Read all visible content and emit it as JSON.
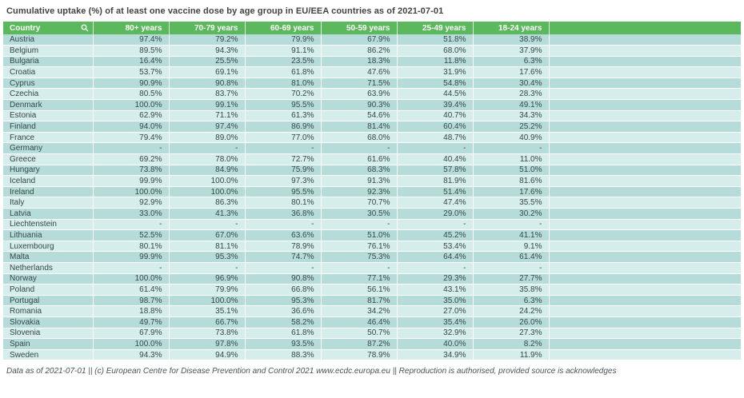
{
  "title": "Cumulative uptake (%) of at least one vaccine dose by age group in EU/EEA countries as of 2021-07-01",
  "footer_note": "Data as of 2021-07-01 || (c) European Centre for Disease Prevention and Control 2021 www.ecdc.europa.eu || Reproduction is authorised, provided source is acknowledges",
  "colors": {
    "header_bg": "#5cb85c",
    "header_text": "#ffffff",
    "row_odd": "#b6dcd9",
    "row_even": "#d5edeb",
    "cell_text": "#37474a",
    "title_color": "#3f4345",
    "footer_color": "#4a5254",
    "page_bg": "#ffffff"
  },
  "icons": {
    "search": "magnifier-icon"
  },
  "chart_data": {
    "type": "table",
    "title": "Cumulative uptake (%) of at least one vaccine dose by age group in EU/EEA countries as of 2021-07-01",
    "columns": [
      "Country",
      "80+ years",
      "70-79 years",
      "60-69 years",
      "50-59 years",
      "25-49 years",
      "18-24 years"
    ],
    "rows": [
      {
        "country": "Austria",
        "values": [
          "97.4%",
          "79.2%",
          "79.9%",
          "67.9%",
          "51.8%",
          "38.9%"
        ]
      },
      {
        "country": "Belgium",
        "values": [
          "89.5%",
          "94.3%",
          "91.1%",
          "86.2%",
          "68.0%",
          "37.9%"
        ]
      },
      {
        "country": "Bulgaria",
        "values": [
          "16.4%",
          "25.5%",
          "23.5%",
          "18.3%",
          "11.8%",
          "6.3%"
        ]
      },
      {
        "country": "Croatia",
        "values": [
          "53.7%",
          "69.1%",
          "61.8%",
          "47.6%",
          "31.9%",
          "17.6%"
        ]
      },
      {
        "country": "Cyprus",
        "values": [
          "90.9%",
          "90.8%",
          "81.0%",
          "71.5%",
          "54.8%",
          "30.4%"
        ]
      },
      {
        "country": "Czechia",
        "values": [
          "80.5%",
          "83.7%",
          "70.2%",
          "63.9%",
          "44.5%",
          "28.3%"
        ]
      },
      {
        "country": "Denmark",
        "values": [
          "100.0%",
          "99.1%",
          "95.5%",
          "90.3%",
          "39.4%",
          "49.1%"
        ]
      },
      {
        "country": "Estonia",
        "values": [
          "62.9%",
          "71.1%",
          "61.3%",
          "54.6%",
          "40.7%",
          "34.3%"
        ]
      },
      {
        "country": "Finland",
        "values": [
          "94.0%",
          "97.4%",
          "86.9%",
          "81.4%",
          "60.4%",
          "25.2%"
        ]
      },
      {
        "country": "France",
        "values": [
          "79.4%",
          "89.0%",
          "77.0%",
          "68.0%",
          "48.7%",
          "40.9%"
        ]
      },
      {
        "country": "Germany",
        "values": [
          "-",
          "-",
          "-",
          "-",
          "-",
          "-"
        ]
      },
      {
        "country": "Greece",
        "values": [
          "69.2%",
          "78.0%",
          "72.7%",
          "61.6%",
          "40.4%",
          "11.0%"
        ]
      },
      {
        "country": "Hungary",
        "values": [
          "73.8%",
          "84.9%",
          "75.9%",
          "68.3%",
          "57.8%",
          "51.0%"
        ]
      },
      {
        "country": "Iceland",
        "values": [
          "99.9%",
          "100.0%",
          "97.3%",
          "91.3%",
          "81.9%",
          "81.6%"
        ]
      },
      {
        "country": "Ireland",
        "values": [
          "100.0%",
          "100.0%",
          "95.5%",
          "92.3%",
          "51.4%",
          "17.6%"
        ]
      },
      {
        "country": "Italy",
        "values": [
          "92.9%",
          "86.3%",
          "80.1%",
          "70.7%",
          "47.4%",
          "35.5%"
        ]
      },
      {
        "country": "Latvia",
        "values": [
          "33.0%",
          "41.3%",
          "36.8%",
          "30.5%",
          "29.0%",
          "30.2%"
        ]
      },
      {
        "country": "Liechtenstein",
        "values": [
          "-",
          "-",
          "-",
          "-",
          "-",
          "-"
        ]
      },
      {
        "country": "Lithuania",
        "values": [
          "52.5%",
          "67.0%",
          "63.6%",
          "51.0%",
          "45.2%",
          "41.1%"
        ]
      },
      {
        "country": "Luxembourg",
        "values": [
          "80.1%",
          "81.1%",
          "78.9%",
          "76.1%",
          "53.4%",
          "9.1%"
        ]
      },
      {
        "country": "Malta",
        "values": [
          "99.9%",
          "95.3%",
          "74.7%",
          "75.3%",
          "64.4%",
          "61.4%"
        ]
      },
      {
        "country": "Netherlands",
        "values": [
          "-",
          "-",
          "-",
          "-",
          "-",
          "-"
        ]
      },
      {
        "country": "Norway",
        "values": [
          "100.0%",
          "96.9%",
          "90.8%",
          "77.1%",
          "29.3%",
          "27.7%"
        ]
      },
      {
        "country": "Poland",
        "values": [
          "61.4%",
          "79.9%",
          "66.8%",
          "56.1%",
          "43.1%",
          "35.8%"
        ]
      },
      {
        "country": "Portugal",
        "values": [
          "98.7%",
          "100.0%",
          "95.3%",
          "81.7%",
          "35.0%",
          "6.3%"
        ]
      },
      {
        "country": "Romania",
        "values": [
          "18.8%",
          "35.1%",
          "36.6%",
          "34.2%",
          "27.0%",
          "24.2%"
        ]
      },
      {
        "country": "Slovakia",
        "values": [
          "49.7%",
          "66.7%",
          "58.2%",
          "46.4%",
          "35.4%",
          "26.0%"
        ]
      },
      {
        "country": "Slovenia",
        "values": [
          "67.9%",
          "73.8%",
          "61.8%",
          "50.7%",
          "32.9%",
          "27.3%"
        ]
      },
      {
        "country": "Spain",
        "values": [
          "100.0%",
          "97.8%",
          "93.5%",
          "87.2%",
          "40.0%",
          "8.2%"
        ]
      },
      {
        "country": "Sweden",
        "values": [
          "94.3%",
          "94.9%",
          "88.3%",
          "78.9%",
          "34.9%",
          "11.9%"
        ]
      }
    ]
  }
}
